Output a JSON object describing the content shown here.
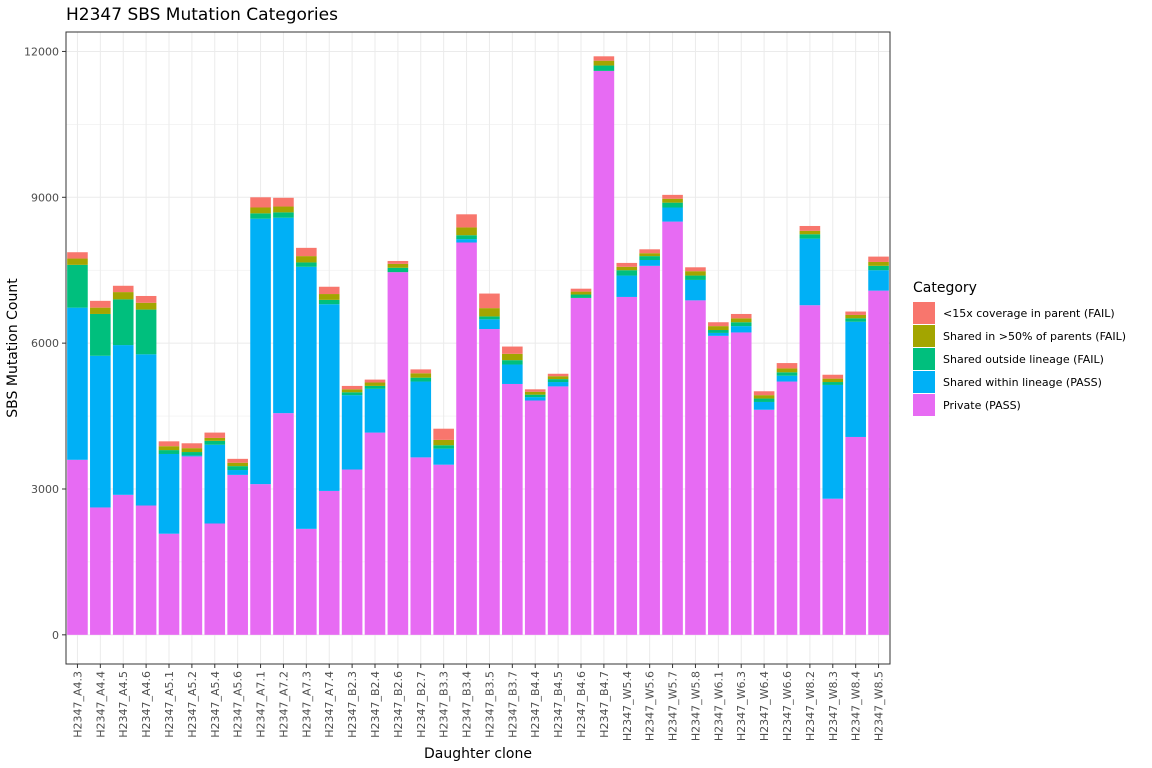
{
  "chart_data": {
    "type": "bar",
    "stacked": true,
    "title": "H2347 SBS Mutation Categories",
    "xlabel": "Daughter clone",
    "ylabel": "SBS Mutation Count",
    "ylim": [
      -600,
      12400
    ],
    "yticks": [
      0,
      3000,
      6000,
      9000,
      12000
    ],
    "grid": true,
    "legend_position": "right",
    "legend_title": "Category",
    "categories": [
      "H2347_A4.3",
      "H2347_A4.4",
      "H2347_A4.5",
      "H2347_A4.6",
      "H2347_A5.1",
      "H2347_A5.2",
      "H2347_A5.4",
      "H2347_A5.6",
      "H2347_A7.1",
      "H2347_A7.2",
      "H2347_A7.3",
      "H2347_A7.4",
      "H2347_B2.3",
      "H2347_B2.4",
      "H2347_B2.6",
      "H2347_B2.7",
      "H2347_B3.3",
      "H2347_B3.4",
      "H2347_B3.5",
      "H2347_B3.7",
      "H2347_B4.4",
      "H2347_B4.5",
      "H2347_B4.6",
      "H2347_B4.7",
      "H2347_W5.4",
      "H2347_W5.6",
      "H2347_W5.7",
      "H2347_W5.8",
      "H2347_W6.1",
      "H2347_W6.3",
      "H2347_W6.4",
      "H2347_W6.6",
      "H2347_W8.2",
      "H2347_W8.3",
      "H2347_W8.4",
      "H2347_W8.5"
    ],
    "series": [
      {
        "name": "Private (PASS)",
        "color": "#E76BF3",
        "values": [
          3600,
          2620,
          2880,
          2660,
          2080,
          3670,
          2290,
          3290,
          3100,
          4560,
          2180,
          2960,
          3400,
          4160,
          7460,
          3650,
          3500,
          8070,
          6290,
          5160,
          4820,
          5110,
          6930,
          11600,
          6950,
          7590,
          8500,
          6880,
          6150,
          6220,
          4630,
          5210,
          6780,
          2800,
          4070,
          7080
        ]
      },
      {
        "name": "Shared within lineage (PASS)",
        "color": "#00B0F6",
        "values": [
          3130,
          3120,
          3080,
          3110,
          1640,
          20,
          1620,
          100,
          5460,
          4020,
          5390,
          3840,
          1530,
          900,
          0,
          1560,
          330,
          70,
          200,
          400,
          70,
          90,
          0,
          0,
          440,
          120,
          290,
          420,
          60,
          130,
          160,
          120,
          1370,
          2340,
          2370,
          420
        ]
      },
      {
        "name": "Shared outside lineage (FAIL)",
        "color": "#00BF7D",
        "values": [
          880,
          860,
          940,
          920,
          80,
          70,
          80,
          80,
          110,
          110,
          90,
          90,
          60,
          60,
          90,
          80,
          70,
          80,
          60,
          90,
          50,
          60,
          70,
          110,
          110,
          80,
          100,
          90,
          60,
          80,
          70,
          70,
          90,
          60,
          70,
          90
        ]
      },
      {
        "name": "Shared in >50% of parents (FAIL)",
        "color": "#A3A500",
        "values": [
          130,
          130,
          150,
          140,
          80,
          80,
          60,
          70,
          120,
          120,
          130,
          120,
          60,
          70,
          80,
          90,
          110,
          160,
          170,
          130,
          60,
          60,
          60,
          100,
          70,
          60,
          80,
          90,
          80,
          80,
          70,
          80,
          70,
          70,
          70,
          80
        ]
      },
      {
        "name": "<15x coverage in parent (FAIL)",
        "color": "#F8766D",
        "values": [
          130,
          140,
          130,
          140,
          100,
          100,
          110,
          80,
          210,
          180,
          170,
          150,
          70,
          60,
          60,
          80,
          230,
          270,
          300,
          150,
          50,
          50,
          60,
          90,
          80,
          80,
          80,
          80,
          80,
          90,
          80,
          110,
          100,
          80,
          70,
          110
        ]
      }
    ],
    "legend_order": [
      "<15x coverage in parent (FAIL)",
      "Shared in >50% of parents (FAIL)",
      "Shared outside lineage (FAIL)",
      "Shared within lineage (PASS)",
      "Private (PASS)"
    ]
  }
}
